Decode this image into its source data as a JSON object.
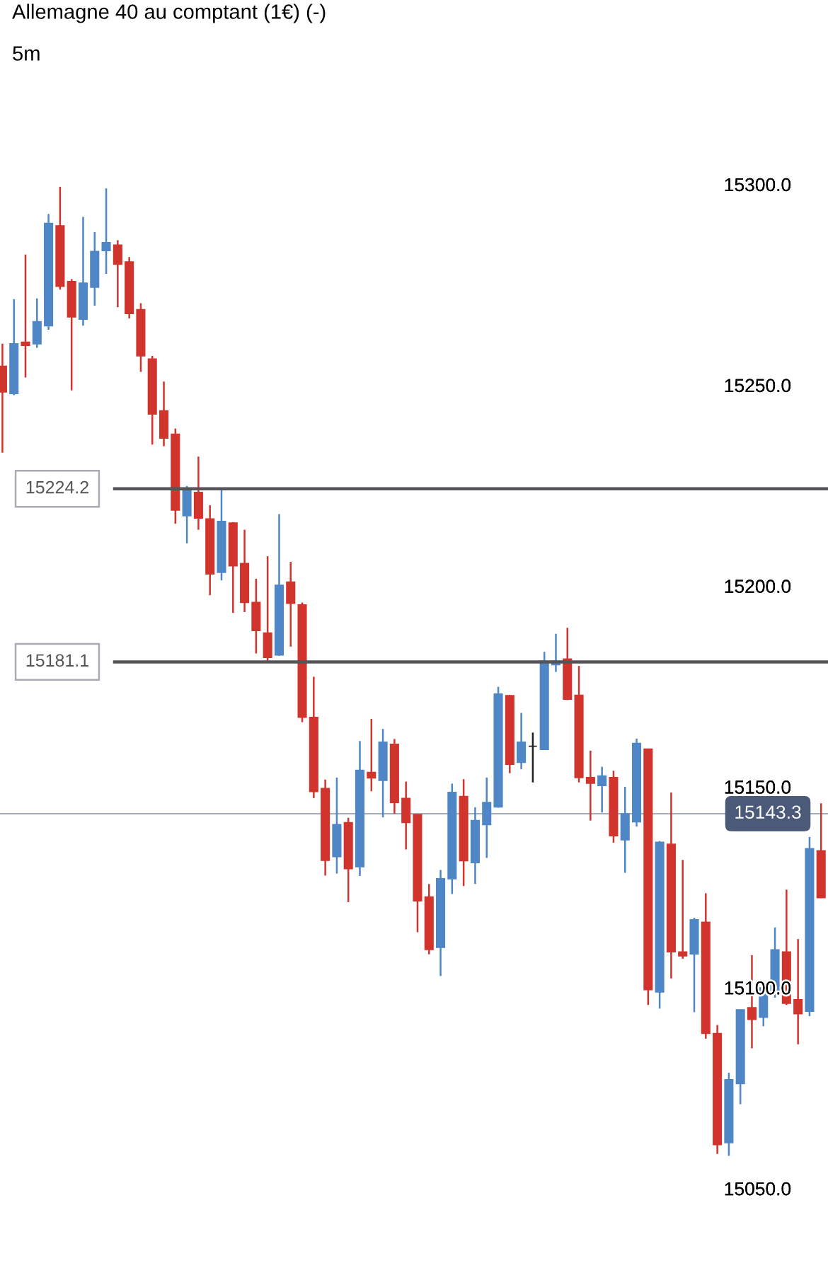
{
  "chart_data": {
    "type": "candlestick",
    "title": "Allemagne 40 au comptant (1€) (-)",
    "subtitle": "5m",
    "categories": [
      null,
      null,
      null,
      null,
      null,
      null,
      null,
      null,
      null,
      null,
      null,
      null,
      null,
      null,
      null,
      null,
      null,
      null,
      null,
      null,
      null,
      null,
      null,
      null,
      null,
      null,
      null,
      null,
      null,
      null,
      null,
      null,
      null,
      null,
      null,
      null,
      null,
      null,
      null,
      null,
      null,
      null,
      null,
      null,
      null,
      null,
      null,
      null,
      null,
      null,
      null,
      null,
      null,
      null,
      null,
      null,
      null,
      null,
      null,
      null,
      null,
      null,
      null,
      null,
      null,
      null,
      null,
      null,
      null,
      null,
      null,
      null
    ],
    "ohlc": [
      [
        15254.7,
        15260.3,
        15233.2,
        15248.3
      ],
      [
        15247.9,
        15271.4,
        15247.5,
        15260.3
      ],
      [
        15260.7,
        15282.5,
        15251.9,
        15259.9
      ],
      [
        15260.3,
        15271.6,
        15259.3,
        15265.8
      ],
      [
        15264.8,
        15292.6,
        15263.8,
        15290.3
      ],
      [
        15289.7,
        15299.4,
        15273.8,
        15274.6
      ],
      [
        15275.8,
        15276.4,
        15248.7,
        15267.0
      ],
      [
        15266.4,
        15291.9,
        15264.8,
        15275.4
      ],
      [
        15274.4,
        15288.1,
        15269.8,
        15283.3
      ],
      [
        15283.5,
        15299.0,
        15277.7,
        15285.5
      ],
      [
        15284.9,
        15286.1,
        15269.4,
        15280.1
      ],
      [
        15280.7,
        15281.9,
        15266.6,
        15267.8
      ],
      [
        15268.8,
        15270.4,
        15253.3,
        15257.3
      ],
      [
        15256.5,
        15257.3,
        15235.2,
        15242.8
      ],
      [
        15243.6,
        15250.9,
        15234.8,
        15236.8
      ],
      [
        15237.8,
        15239.2,
        15215.5,
        15218.9
      ],
      [
        15217.5,
        15224.9,
        15210.6,
        15223.7
      ],
      [
        15223.3,
        15232.2,
        15214.0,
        15216.9
      ],
      [
        15216.7,
        15220.1,
        15197.7,
        15203.0
      ],
      [
        15203.4,
        15224.3,
        15201.4,
        15216.1
      ],
      [
        15215.7,
        15215.9,
        15193.3,
        15205.0
      ],
      [
        15205.6,
        15214.0,
        15193.5,
        15195.9
      ],
      [
        15195.9,
        15201.8,
        15183.2,
        15188.9
      ],
      [
        15188.3,
        15207.4,
        15181.2,
        15182.2
      ],
      [
        15182.8,
        15217.9,
        15182.6,
        15200.2
      ],
      [
        15201.0,
        15206.0,
        15184.9,
        15195.7
      ],
      [
        15195.3,
        15195.9,
        15166.1,
        15167.3
      ],
      [
        15167.3,
        15177.4,
        15147.2,
        15148.8
      ],
      [
        15149.6,
        15151.8,
        15127.9,
        15131.7
      ],
      [
        15132.6,
        15152.3,
        15128.4,
        15140.6
      ],
      [
        15141.1,
        15142.3,
        15121.3,
        15129.6
      ],
      [
        15130.1,
        15161.4,
        15127.8,
        15154.1
      ],
      [
        15153.6,
        15166.9,
        15148.9,
        15152.2
      ],
      [
        15151.6,
        15164.4,
        15142.4,
        15161.1
      ],
      [
        15160.6,
        15161.9,
        15143.3,
        15146.1
      ],
      [
        15147.1,
        15151.3,
        15134.4,
        15141.1
      ],
      [
        15143.1,
        15143.1,
        15113.8,
        15121.6
      ],
      [
        15122.6,
        15125.8,
        15108.3,
        15109.5
      ],
      [
        15110.0,
        15129.3,
        15102.9,
        15127.1
      ],
      [
        15127.1,
        15150.8,
        15123.3,
        15148.6
      ],
      [
        15147.6,
        15151.9,
        15125.3,
        15131.6
      ],
      [
        15131.1,
        15144.9,
        15125.8,
        15141.6
      ],
      [
        15140.6,
        15152.3,
        15132.3,
        15146.1
      ],
      [
        15145.0,
        15174.9,
        15144.8,
        15173.1
      ],
      [
        15172.7,
        15172.9,
        15153.4,
        15155.6
      ],
      [
        15156.1,
        15168.4,
        15154.4,
        15161.1
      ],
      [
        15160.1,
        15163.5,
        15151.1,
        15160.1
      ],
      [
        15159.3,
        15183.6,
        15159.3,
        15181.3
      ],
      [
        15180.4,
        15188.1,
        15178.6,
        15181.3
      ],
      [
        15181.8,
        15189.6,
        15171.6,
        15171.8
      ],
      [
        15172.8,
        15180.1,
        15151.1,
        15152.3
      ],
      [
        15152.3,
        15159.0,
        15141.6,
        15150.9
      ],
      [
        15150.3,
        15155.0,
        15143.6,
        15152.7
      ],
      [
        15152.3,
        15154.0,
        15136.1,
        15137.8
      ],
      [
        15136.8,
        15150.0,
        15128.6,
        15143.3
      ],
      [
        15141.3,
        15162.0,
        15140.1,
        15160.8
      ],
      [
        15159.4,
        15159.4,
        15095.7,
        15099.5
      ],
      [
        15098.9,
        15136.5,
        15094.8,
        15136.2
      ],
      [
        15135.7,
        15148.6,
        15102.3,
        15108.9
      ],
      [
        15108.9,
        15131.8,
        15107.2,
        15107.9
      ],
      [
        15108.4,
        15117.4,
        15093.9,
        15116.9
      ],
      [
        15116.3,
        15123.5,
        15087.3,
        15088.6
      ],
      [
        15088.6,
        15090.7,
        15058.6,
        15060.9
      ],
      [
        15061.4,
        15078.8,
        15058.1,
        15077.1
      ],
      [
        15076.1,
        15094.5,
        15071.0,
        15094.5
      ],
      [
        15095.0,
        15108.1,
        15084.9,
        15092.1
      ],
      [
        15092.6,
        15101.4,
        15090.4,
        15100.0
      ],
      [
        15098.4,
        15115.0,
        15097.5,
        15109.4
      ],
      [
        15108.9,
        15124.4,
        15095.7,
        15096.1
      ],
      [
        15097.0,
        15112.1,
        15085.9,
        15093.5
      ],
      [
        15094.1,
        15137.5,
        15092.9,
        15134.6
      ],
      [
        15134.1,
        15145.9,
        15122.4,
        15122.4
      ]
    ],
    "colors": [
      "#d0342c",
      "#4f86c6",
      "#d0342c",
      "#4f86c6",
      "#4f86c6",
      "#d0342c",
      "#d0342c",
      "#4f86c6",
      "#4f86c6",
      "#4f86c6",
      "#d0342c",
      "#d0342c",
      "#d0342c",
      "#d0342c",
      "#d0342c",
      "#d0342c",
      "#4f86c6",
      "#d0342c",
      "#d0342c",
      "#4f86c6",
      "#d0342c",
      "#d0342c",
      "#d0342c",
      "#d0342c",
      "#4f86c6",
      "#d0342c",
      "#d0342c",
      "#d0342c",
      "#d0342c",
      "#4f86c6",
      "#d0342c",
      "#4f86c6",
      "#d0342c",
      "#4f86c6",
      "#d0342c",
      "#d0342c",
      "#d0342c",
      "#d0342c",
      "#4f86c6",
      "#4f86c6",
      "#d0342c",
      "#4f86c6",
      "#4f86c6",
      "#4f86c6",
      "#d0342c",
      "#4f86c6",
      "#222222",
      "#4f86c6",
      "#4f86c6",
      "#d0342c",
      "#d0342c",
      "#d0342c",
      "#4f86c6",
      "#d0342c",
      "#4f86c6",
      "#4f86c6",
      "#d0342c",
      "#4f86c6",
      "#d0342c",
      "#d0342c",
      "#4f86c6",
      "#d0342c",
      "#d0342c",
      "#4f86c6",
      "#4f86c6",
      "#d0342c",
      "#4f86c6",
      "#4f86c6",
      "#d0342c",
      "#d0342c",
      "#4f86c6",
      "#d0342c"
    ],
    "ylim": [
      15050,
      15300
    ],
    "yticks": [
      {
        "value": 15050,
        "label": "15050.0"
      },
      {
        "value": 15100,
        "label": "15100.0"
      },
      {
        "value": 15150,
        "label": "15150.0"
      },
      {
        "value": 15200,
        "label": "15200.0"
      },
      {
        "value": 15250,
        "label": "15250.0"
      },
      {
        "value": 15300,
        "label": "15300.0"
      }
    ],
    "ref_lines": [
      {
        "axis": "y",
        "value": 15224.2,
        "label": "15224.2",
        "color": "#555559"
      },
      {
        "axis": "y",
        "value": 15181.1,
        "label": "15181.1",
        "color": "#555559"
      },
      {
        "axis": "y",
        "value": 15143.3,
        "label": "15143.3",
        "color": "#a3adbd"
      }
    ],
    "grid": false,
    "legend": false
  }
}
